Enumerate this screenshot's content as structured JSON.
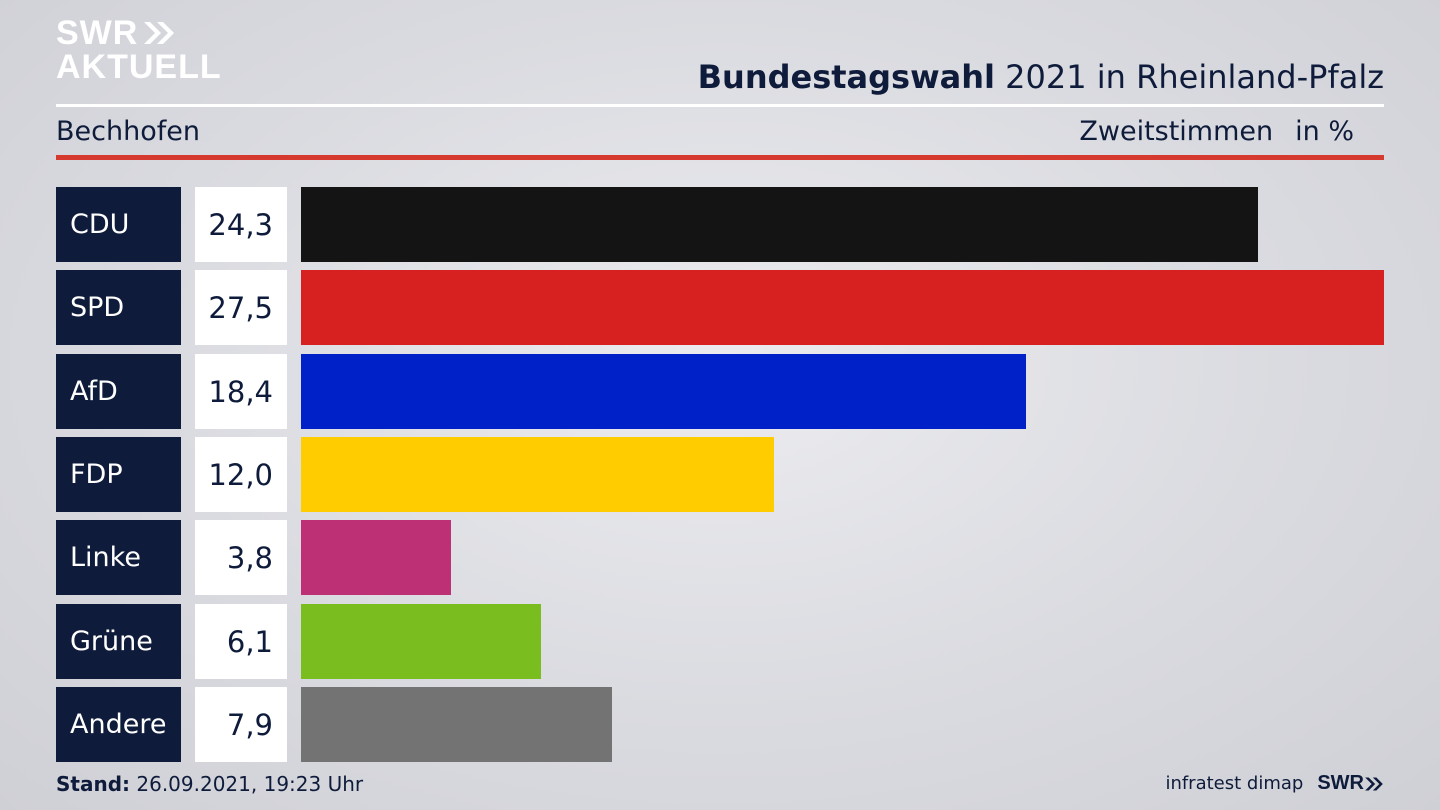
{
  "logo": {
    "line1": "SWR",
    "line2": "AKTUELL"
  },
  "header": {
    "title_bold": "Bundestagswahl",
    "title_rest": " 2021 in Rheinland-Pfalz",
    "region": "Bechhofen",
    "measure": "Zweitstimmen",
    "unit": "in %"
  },
  "chart_data": {
    "type": "bar",
    "orientation": "horizontal",
    "categories": [
      "CDU",
      "SPD",
      "AfD",
      "FDP",
      "Linke",
      "Grüne",
      "Andere"
    ],
    "values": [
      24.3,
      27.5,
      18.4,
      12.0,
      3.8,
      6.1,
      7.9
    ],
    "value_labels": [
      "24,3",
      "27,5",
      "18,4",
      "12,0",
      "3,8",
      "6,1",
      "7,9"
    ],
    "colors": [
      "#141414",
      "#d72020",
      "#0021c8",
      "#ffcc00",
      "#be3075",
      "#79be1e",
      "#737373"
    ],
    "xlim": [
      0,
      27.5
    ],
    "grid": false
  },
  "footer": {
    "stand_label": "Stand:",
    "stand_value": " 26.09.2021, 19:23 Uhr",
    "source": "infratest dimap",
    "brand": "SWR"
  }
}
